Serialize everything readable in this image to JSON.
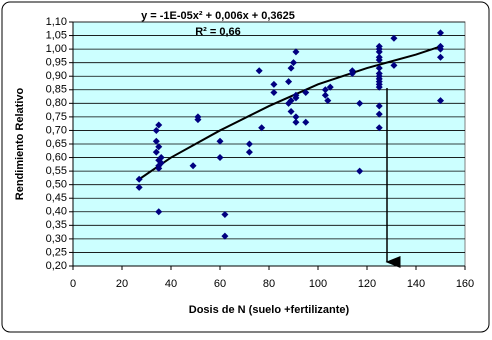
{
  "chart_data": {
    "type": "scatter",
    "xlabel": "Dosis de N (suelo +fertilizante)",
    "ylabel": "Rendimiento Relativo",
    "annotations": [
      "y = -1E-05x² + 0,006x + 0,3625",
      "R² = 0,66"
    ],
    "xlim": [
      0,
      160
    ],
    "xticks": [
      0,
      20,
      40,
      60,
      80,
      100,
      120,
      140,
      160
    ],
    "ylim": [
      0.2,
      1.1
    ],
    "yticks": [
      {
        "value": 0.2,
        "label": "0,20"
      },
      {
        "value": 0.25,
        "label": "0,25"
      },
      {
        "value": 0.3,
        "label": "0,30"
      },
      {
        "value": 0.35,
        "label": "0,35"
      },
      {
        "value": 0.4,
        "label": "0,40"
      },
      {
        "value": 0.45,
        "label": "0,45"
      },
      {
        "value": 0.5,
        "label": "0,50"
      },
      {
        "value": 0.55,
        "label": "0,55"
      },
      {
        "value": 0.6,
        "label": "0,60"
      },
      {
        "value": 0.65,
        "label": "0,65"
      },
      {
        "value": 0.7,
        "label": "0,70"
      },
      {
        "value": 0.75,
        "label": "0,75"
      },
      {
        "value": 0.8,
        "label": "0,80"
      },
      {
        "value": 0.85,
        "label": "0,85"
      },
      {
        "value": 0.9,
        "label": "0,90"
      },
      {
        "value": 0.95,
        "label": "0,95"
      },
      {
        "value": 1.0,
        "label": "1,00"
      },
      {
        "value": 1.05,
        "label": "1,05"
      },
      {
        "value": 1.1,
        "label": "1,10"
      }
    ],
    "grid": true,
    "background": "#ccffff",
    "points": {
      "color": "#000080",
      "x": [
        27,
        27,
        34,
        34,
        34,
        35,
        35,
        35,
        35,
        35,
        36,
        36,
        35,
        49,
        51,
        51,
        60,
        60,
        62,
        62,
        72,
        72,
        76,
        77,
        82,
        82,
        88,
        88,
        89,
        89,
        89,
        90,
        91,
        91,
        91,
        91,
        91,
        95,
        95,
        103,
        103,
        104,
        105,
        114,
        114,
        117,
        117,
        125,
        125,
        125,
        125,
        125,
        125,
        125,
        125,
        125,
        125,
        125,
        125,
        125,
        125,
        125,
        131,
        131,
        150,
        150,
        150,
        150,
        150
      ],
      "y": [
        0.52,
        0.49,
        0.7,
        0.66,
        0.62,
        0.72,
        0.64,
        0.59,
        0.56,
        0.57,
        0.6,
        0.58,
        0.4,
        0.57,
        0.75,
        0.74,
        0.66,
        0.6,
        0.39,
        0.31,
        0.65,
        0.62,
        0.92,
        0.71,
        0.87,
        0.84,
        0.88,
        0.8,
        0.81,
        0.93,
        0.77,
        0.95,
        0.99,
        0.83,
        0.82,
        0.75,
        0.73,
        0.73,
        0.84,
        0.85,
        0.83,
        0.81,
        0.86,
        0.92,
        0.91,
        0.8,
        0.55,
        1.01,
        1.0,
        0.99,
        0.97,
        0.96,
        0.93,
        0.91,
        0.9,
        0.89,
        0.88,
        0.87,
        0.86,
        0.79,
        0.76,
        0.71,
        1.04,
        0.94,
        1.06,
        1.01,
        1.0,
        0.97,
        0.81
      ]
    },
    "trendline": {
      "color": "#000000",
      "x": [
        27,
        40,
        60,
        80,
        100,
        120,
        140,
        150
      ],
      "y": [
        0.52,
        0.6,
        0.7,
        0.79,
        0.87,
        0.93,
        0.98,
        1.01
      ]
    }
  }
}
